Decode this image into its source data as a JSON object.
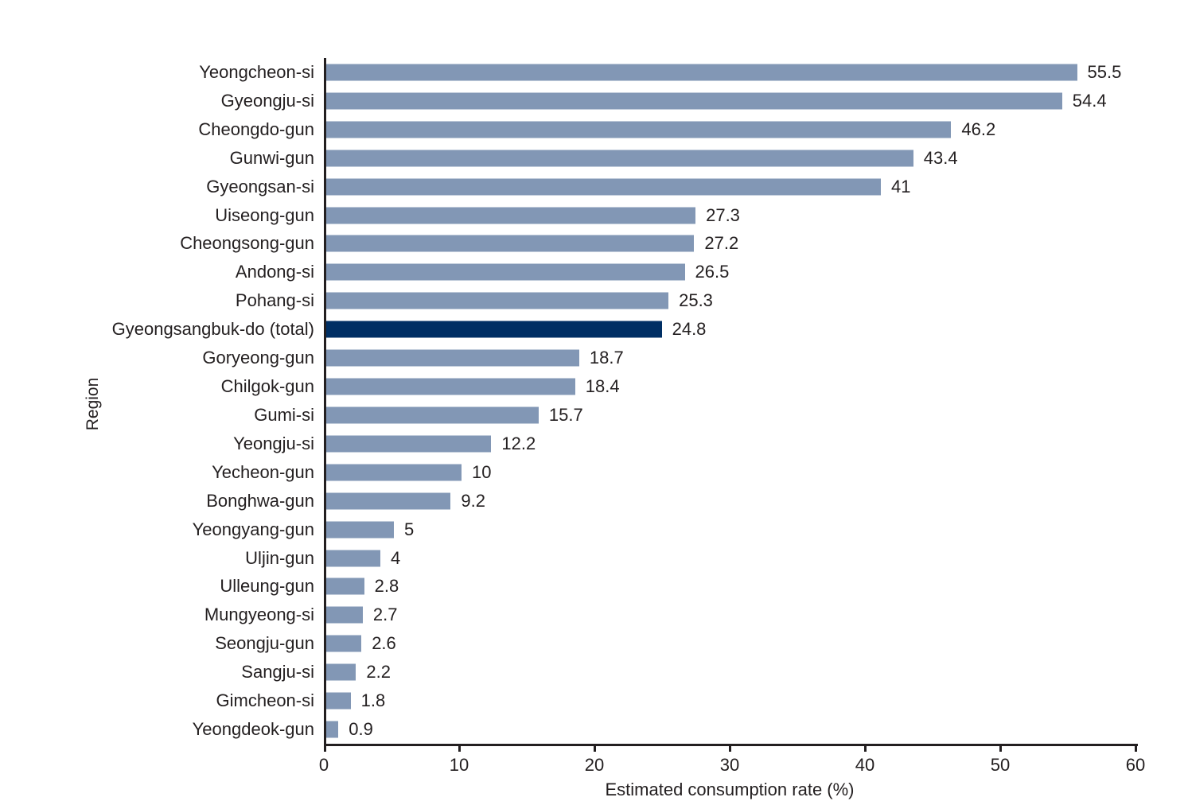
{
  "chart_data": {
    "type": "bar",
    "orientation": "horizontal",
    "title": "",
    "xlabel": "Estimated consumption rate (%)",
    "ylabel": "Region",
    "xlim": [
      0,
      60
    ],
    "xticks": [
      0,
      10,
      20,
      30,
      40,
      50,
      60
    ],
    "xtick_labels": [
      "0",
      "10",
      "20",
      "30",
      "40",
      "50",
      "60"
    ],
    "grid": false,
    "legend": "none",
    "categories": [
      "Yeongcheon-si",
      "Gyeongju-si",
      "Cheongdo-gun",
      "Gunwi-gun",
      "Gyeongsan-si",
      "Uiseong-gun",
      "Cheongsong-gun",
      "Andong-si",
      "Pohang-si",
      "Gyeongsangbuk-do (total)",
      "Goryeong-gun",
      "Chilgok-gun",
      "Gumi-si",
      "Yeongju-si",
      "Yecheon-gun",
      "Bonghwa-gun",
      "Yeongyang-gun",
      "Uljin-gun",
      "Ulleung-gun",
      "Mungyeong-si",
      "Seongju-gun",
      "Sangju-si",
      "Gimcheon-si",
      "Yeongdeok-gun"
    ],
    "values": [
      55.5,
      54.4,
      46.2,
      43.4,
      41,
      27.3,
      27.2,
      26.5,
      25.3,
      24.8,
      18.7,
      18.4,
      15.7,
      12.2,
      10,
      9.2,
      5,
      4,
      2.8,
      2.7,
      2.6,
      2.2,
      1.8,
      0.9
    ],
    "value_labels": [
      "55.5",
      "54.4",
      "46.2",
      "43.4",
      "41",
      "27.3",
      "27.2",
      "26.5",
      "25.3",
      "24.8",
      "18.7",
      "18.4",
      "15.7",
      "12.2",
      "10",
      "9.2",
      "5",
      "4",
      "2.8",
      "2.7",
      "2.6",
      "2.2",
      "1.8",
      "0.9"
    ],
    "highlight_category": "Gyeongsangbuk-do (total)",
    "highlight_index": 9,
    "colors": {
      "bar": "#8297B5",
      "highlight_bar": "#002F64",
      "axis": "#231F20",
      "text": "#231F20",
      "background": "#FFFFFF"
    }
  }
}
